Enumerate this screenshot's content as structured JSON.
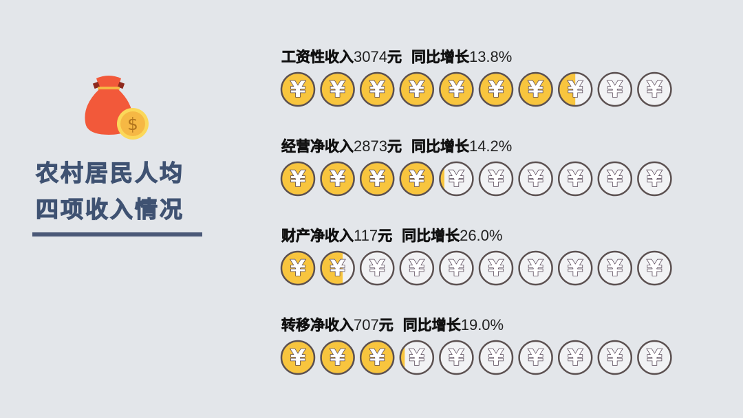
{
  "title": {
    "line1": "农村居民人均",
    "line2": "四项收入情况"
  },
  "colors": {
    "coin_filled": "#f8c53e",
    "coin_empty": "#f1f2f4",
    "coin_border": "#5b5050",
    "title": "#3f5272",
    "bag": "#f2593a",
    "dollar_coin": "#f6b844"
  },
  "icons": {
    "bag": "money-bag-icon",
    "dollar": "dollar-coin-icon",
    "coin": "yen-coin-icon"
  },
  "chart_data": {
    "type": "pictograph",
    "coins_per_row": 10,
    "rows": [
      {
        "label": "工资性收入",
        "amount": "3074",
        "unit": "元",
        "growth_label": "同比增长",
        "growth": "13.8%",
        "filled_coins": 7.5
      },
      {
        "label": "经营净收入",
        "amount": "2873",
        "unit": "元",
        "growth_label": "同比增长",
        "growth": "14.2%",
        "filled_coins": 4.15
      },
      {
        "label": "财产净收入",
        "amount": "117",
        "unit": "元",
        "growth_label": "同比增长",
        "growth": "26.0%",
        "filled_coins": 1.65
      },
      {
        "label": "转移净收入",
        "amount": "707",
        "unit": "元",
        "growth_label": "同比增长",
        "growth": "19.0%",
        "filled_coins": 3.15
      }
    ]
  }
}
